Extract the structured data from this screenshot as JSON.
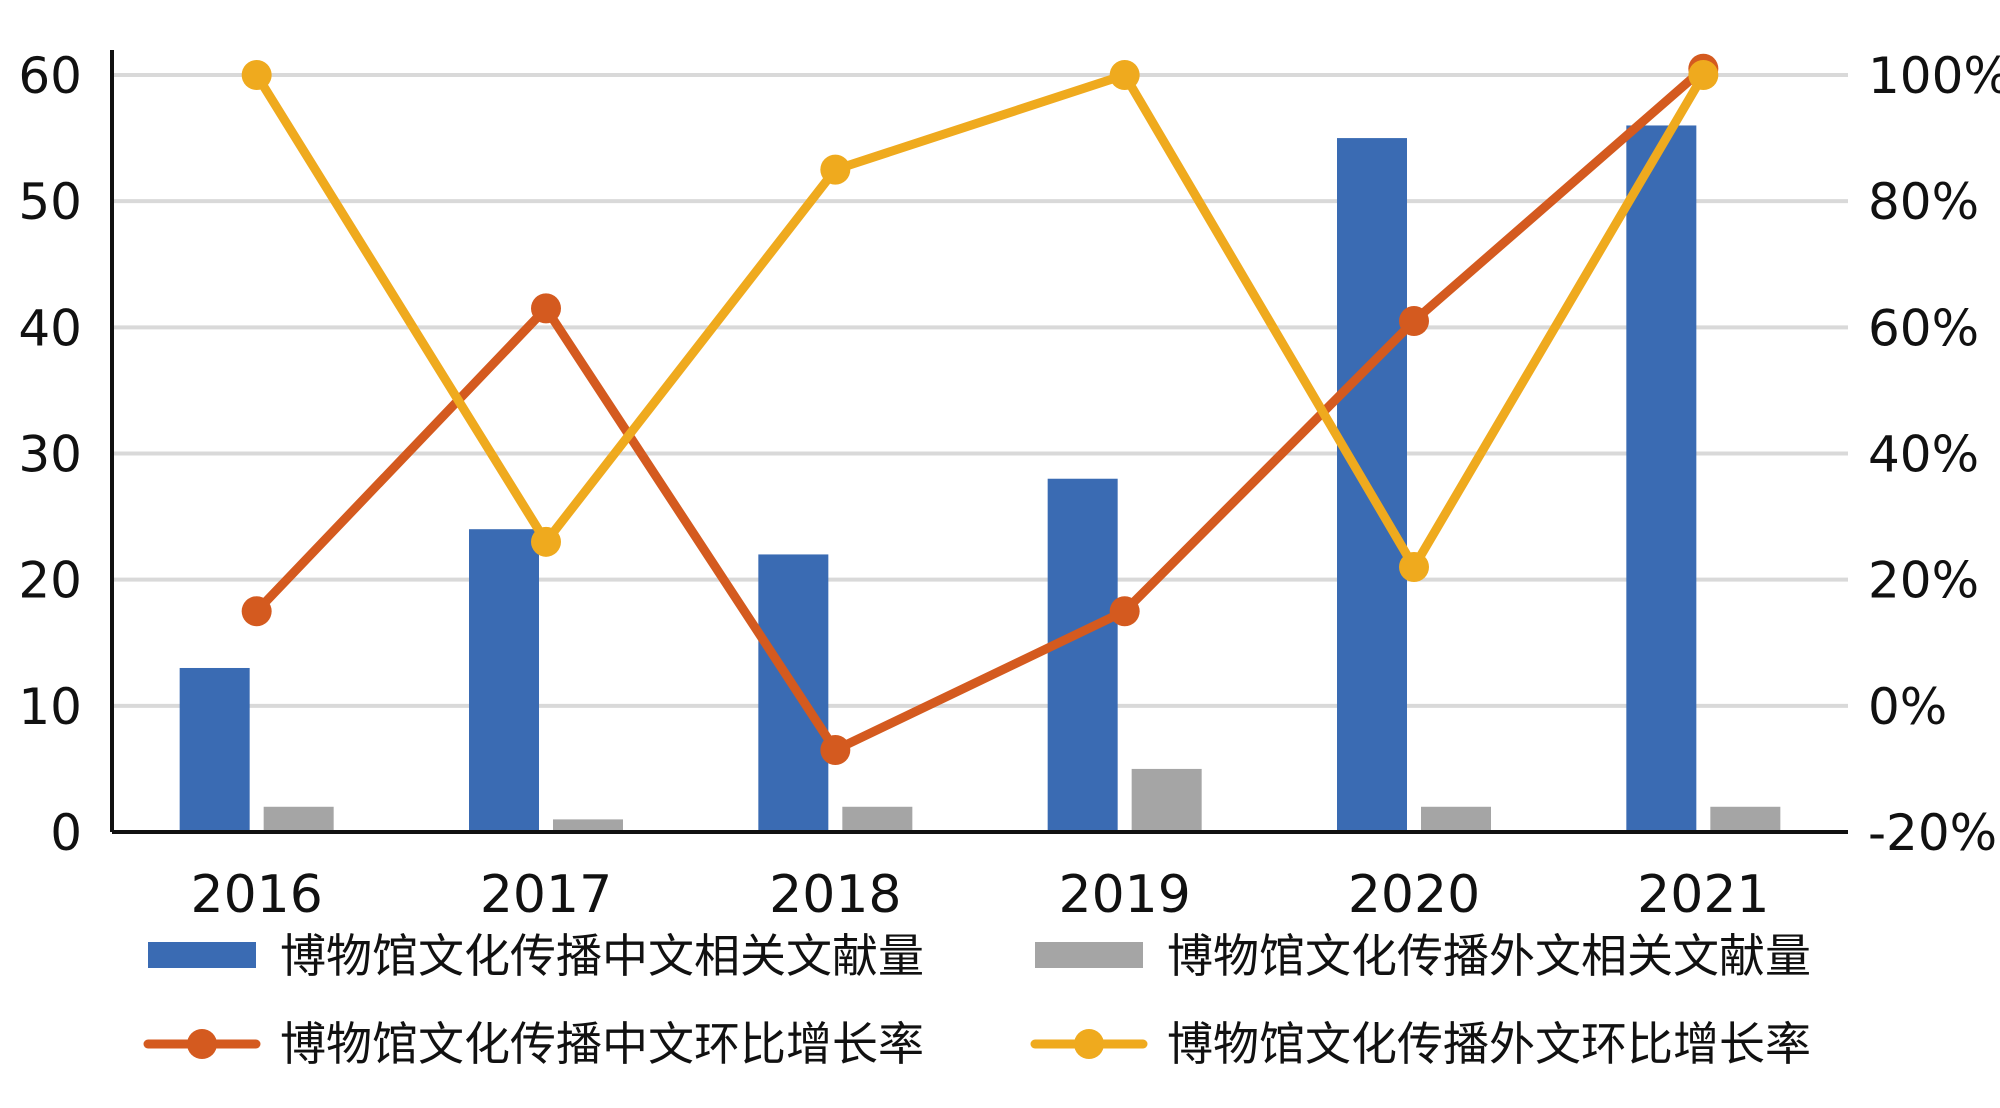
{
  "chart_data": {
    "type": "bar",
    "categories": [
      "2016",
      "2017",
      "2018",
      "2019",
      "2020",
      "2021"
    ],
    "series": [
      {
        "name": "博物馆文化传播中文相关文献量",
        "kind": "bar",
        "axis": "left",
        "color": "#3A6BB3",
        "values": [
          13,
          24,
          22,
          28,
          55,
          56
        ]
      },
      {
        "name": "博物馆文化传播外文相关文献量",
        "kind": "bar",
        "axis": "left",
        "color": "#A5A5A5",
        "values": [
          2,
          1,
          2,
          5,
          2,
          2
        ]
      },
      {
        "name": "博物馆文化传播中文环比增长率",
        "kind": "line",
        "axis": "right",
        "color": "#D45A1F",
        "values": [
          15,
          63,
          -7,
          15,
          61,
          101
        ]
      },
      {
        "name": "博物馆文化传播外文环比增长率",
        "kind": "line",
        "axis": "right",
        "color": "#EFAA1E",
        "values": [
          100,
          26,
          85,
          100,
          22,
          100
        ]
      }
    ],
    "y_left": {
      "min": 0,
      "max": 60,
      "ticks": [
        "0",
        "10",
        "20",
        "30",
        "40",
        "50",
        "60"
      ]
    },
    "y_right": {
      "min": -20,
      "max": 100,
      "ticks": [
        "-20%",
        "0%",
        "20%",
        "40%",
        "60%",
        "80%",
        "100%"
      ]
    },
    "grid": true,
    "legend_position": "bottom"
  }
}
